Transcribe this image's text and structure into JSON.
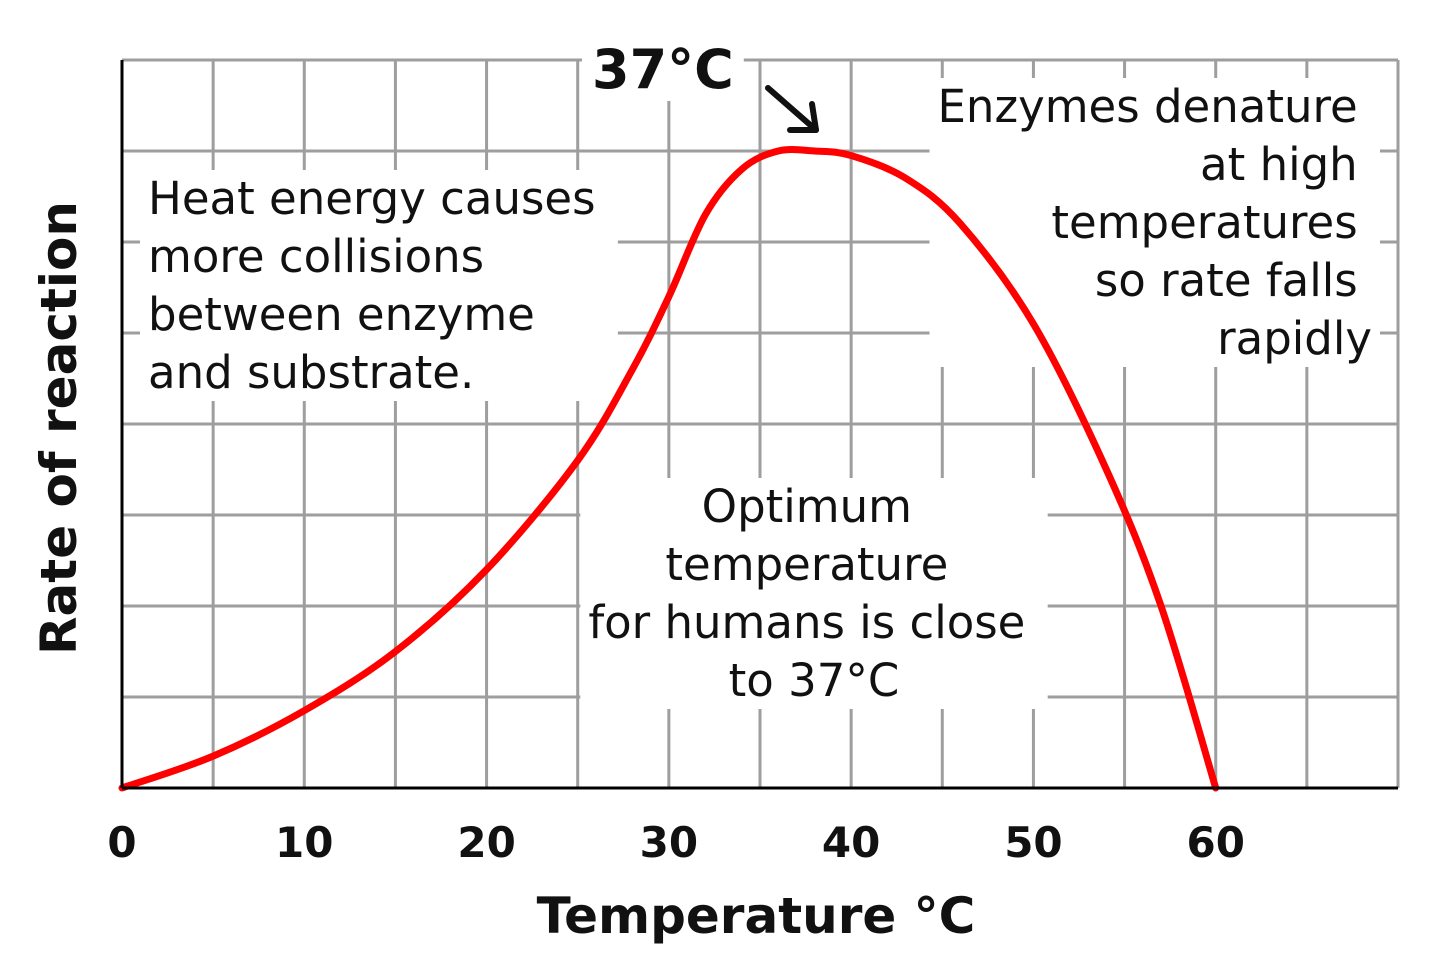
{
  "chart_data": {
    "type": "line",
    "title": "",
    "xlabel": "Temperature °C",
    "ylabel": "Rate of reaction",
    "xlim": [
      0,
      70
    ],
    "ylim": [
      0,
      8
    ],
    "grid": true,
    "x_ticks": [
      0,
      10,
      20,
      30,
      40,
      50,
      60
    ],
    "x_tick_labels": [
      "0",
      "10",
      "20",
      "30",
      "40",
      "50",
      "60"
    ],
    "series": [
      {
        "color": "#ff0000",
        "points": [
          {
            "x": 0,
            "y": 0
          },
          {
            "x": 5,
            "y": 0.35
          },
          {
            "x": 10,
            "y": 0.85
          },
          {
            "x": 15,
            "y": 1.5
          },
          {
            "x": 20,
            "y": 2.4
          },
          {
            "x": 25,
            "y": 3.6
          },
          {
            "x": 28,
            "y": 4.6
          },
          {
            "x": 30,
            "y": 5.4
          },
          {
            "x": 32,
            "y": 6.3
          },
          {
            "x": 34,
            "y": 6.8
          },
          {
            "x": 36,
            "y": 7.0
          },
          {
            "x": 38,
            "y": 7.0
          },
          {
            "x": 40,
            "y": 6.95
          },
          {
            "x": 43,
            "y": 6.7
          },
          {
            "x": 46,
            "y": 6.2
          },
          {
            "x": 50,
            "y": 5.1
          },
          {
            "x": 54,
            "y": 3.5
          },
          {
            "x": 57,
            "y": 2.0
          },
          {
            "x": 60,
            "y": 0
          }
        ]
      }
    ],
    "peak": {
      "label": "37°C",
      "x": 38,
      "y": 7.0
    },
    "annotations": {
      "left": [
        "Heat energy causes",
        "more collisions",
        "between enzyme",
        "and substrate."
      ],
      "right": [
        "Enzymes denature",
        "at high",
        "temperatures",
        "so rate falls",
        "rapidly"
      ],
      "center": [
        "Optimum",
        "temperature",
        "for humans is close",
        "to 37°C"
      ]
    }
  }
}
